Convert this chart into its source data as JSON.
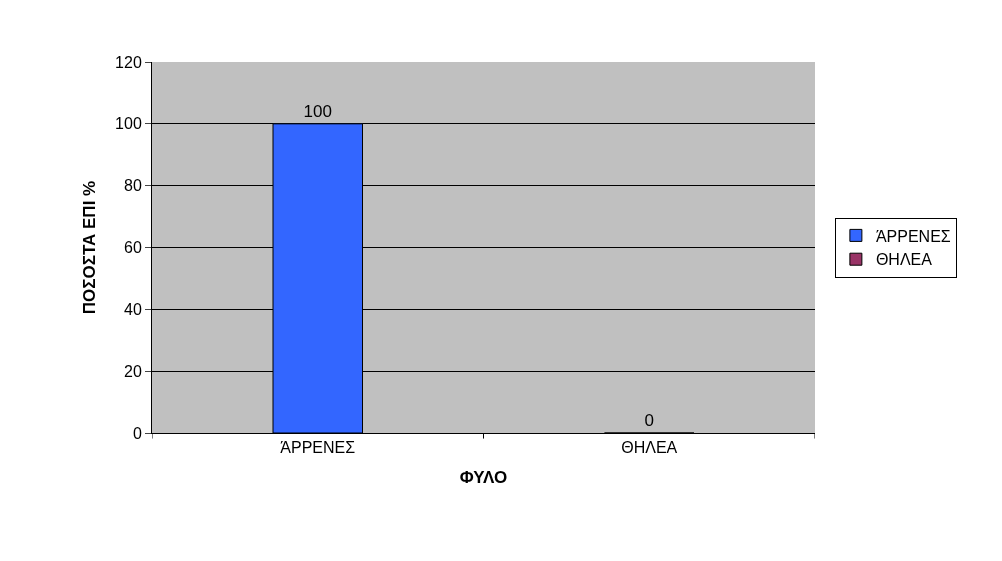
{
  "chart_data": {
    "type": "bar",
    "xlabel": "ΦΥΛΟ",
    "ylabel": "ΠΟΣΟΣΤΑ ΕΠΙ %",
    "categories": [
      "ΆΡΡΕΝΕΣ",
      "ΘΗΛΕΑ"
    ],
    "series": [
      {
        "name": "ΆΡΡΕΝΕΣ",
        "color": "#3366ff",
        "values": [
          100,
          null
        ]
      },
      {
        "name": "ΘΗΛΕΑ",
        "color": "#993366",
        "values": [
          null,
          0
        ]
      }
    ],
    "ylim": [
      0,
      120
    ],
    "yticks": [
      0,
      20,
      40,
      60,
      80,
      100,
      120
    ],
    "grid": "y",
    "legend": "right",
    "data_labels": true
  }
}
